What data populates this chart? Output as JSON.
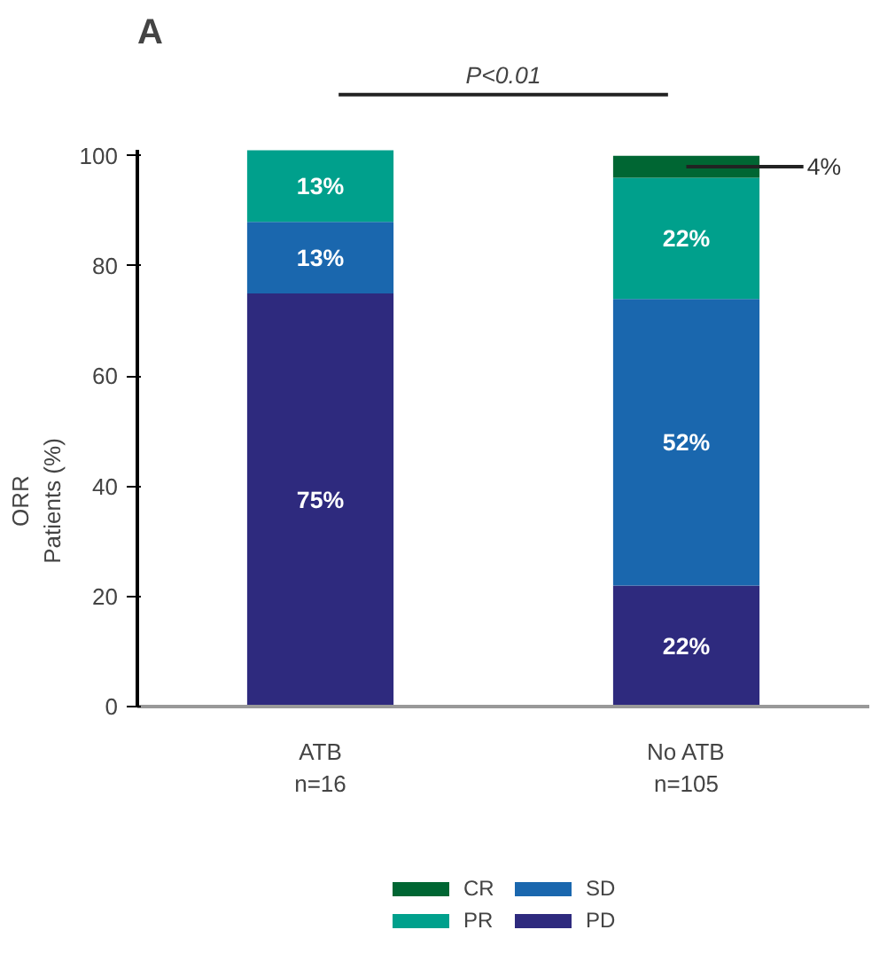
{
  "chart_data": {
    "type": "bar",
    "stacked": true,
    "title": "A",
    "ylabel": "ORR\nPatients (%)",
    "categories": [
      "ATB\nn=16",
      "No ATB\nn=105"
    ],
    "series": [
      {
        "name": "PD",
        "color": "#2e2a7e",
        "values": [
          75,
          22
        ],
        "value_labels": [
          "75%",
          "22%"
        ]
      },
      {
        "name": "SD",
        "color": "#1a67ae",
        "values": [
          13,
          52
        ],
        "value_labels": [
          "13%",
          "52%"
        ]
      },
      {
        "name": "PR",
        "color": "#00a08c",
        "values": [
          13,
          22
        ],
        "value_labels": [
          "13%",
          "22%"
        ]
      },
      {
        "name": "CR",
        "color": "#006633",
        "values": [
          0,
          4
        ],
        "value_labels": [
          null,
          "4%"
        ]
      }
    ],
    "ylim": [
      0,
      101
    ],
    "yticks": [
      0,
      20,
      40,
      60,
      80,
      100
    ],
    "grid": false,
    "legend": "bottom",
    "annotations": [
      "P<0.01"
    ]
  }
}
